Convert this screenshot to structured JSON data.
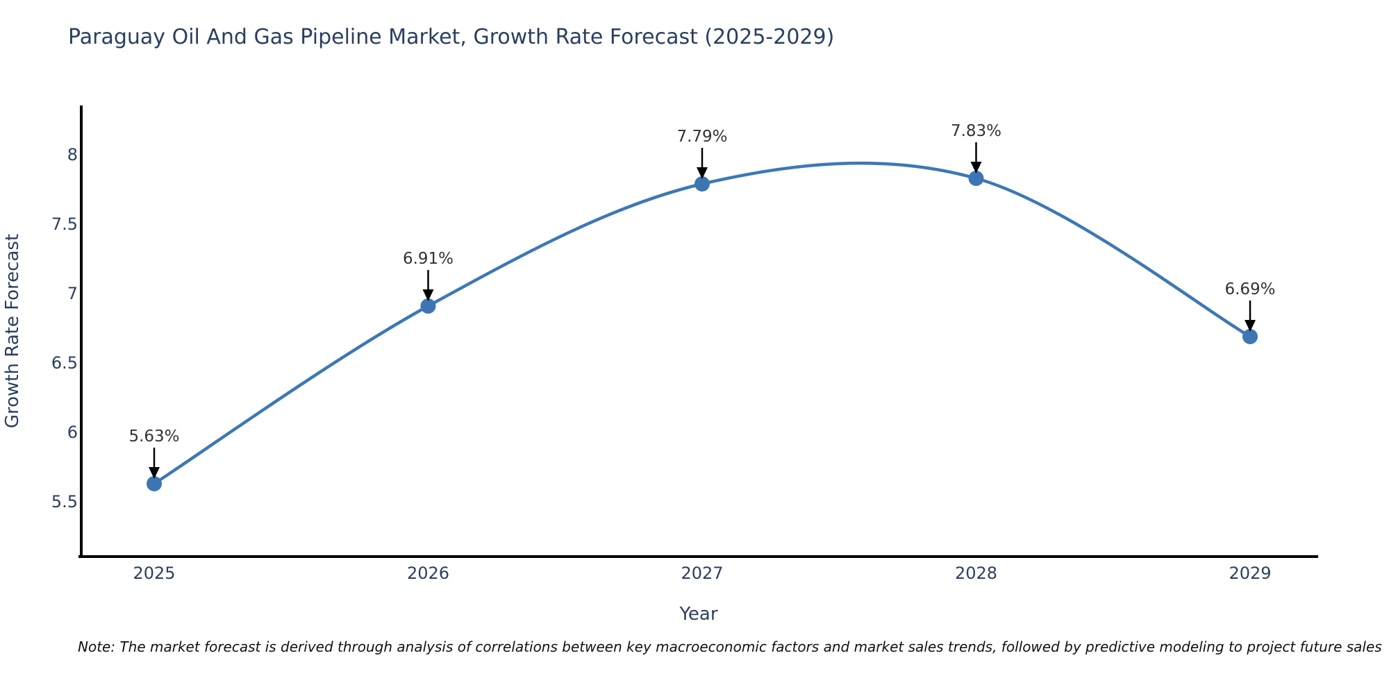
{
  "chart_data": {
    "type": "line",
    "title": "Paraguay Oil And Gas Pipeline Market, Growth Rate Forecast (2025-2029)",
    "x": [
      2025,
      2026,
      2027,
      2028,
      2029
    ],
    "y": [
      5.63,
      6.91,
      7.79,
      7.83,
      6.69
    ],
    "point_labels": [
      "5.63%",
      "6.91%",
      "7.79%",
      "7.83%",
      "6.69%"
    ],
    "xlabel": "Year",
    "ylabel": "Growth Rate Forecast",
    "x_tick_labels": [
      "2025",
      "2026",
      "2027",
      "2028",
      "2029"
    ],
    "y_tick_labels": [
      "5.5",
      "6",
      "6.5",
      "7",
      "7.5",
      "8"
    ],
    "y_tick_values": [
      5.5,
      6,
      6.5,
      7,
      7.5,
      8
    ],
    "ylim": [
      5.105,
      8.355
    ],
    "line_shape": "spline",
    "grid": false,
    "legend": "none",
    "colors": {
      "line": "#3d78b5",
      "marker": "#3d76b2",
      "axis": "#000000",
      "title_text": "#2a3f5f",
      "tick_text": "#2a3f5f",
      "annotation_text": "#333333",
      "arrow": "#000000"
    },
    "note": "Note: The market forecast is derived through analysis of correlations between key macroeconomic factors and market sales trends, followed by predictive modeling to project future sales"
  }
}
